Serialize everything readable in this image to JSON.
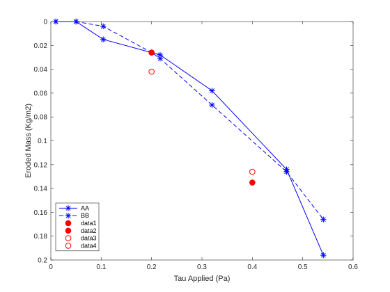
{
  "chart_data": {
    "type": "line",
    "title": "",
    "xlabel": "Tau Applied  (Pa)",
    "ylabel": "Eroded Mass  (Kg/m2)",
    "xlim": [
      0,
      0.6
    ],
    "ylim": [
      0,
      0.2
    ],
    "y_reversed": true,
    "grid": false,
    "legend_position": "bottom-left",
    "x_ticks": [
      "0",
      "0.1",
      "0.2",
      "0.3",
      "0.4",
      "0.5",
      "0.6"
    ],
    "y_ticks": [
      "0",
      "0.02",
      "0.04",
      "0.06",
      "0.08",
      "0.1",
      "0.12",
      "0.14",
      "0.16",
      "0.18",
      "0.2"
    ],
    "series": [
      {
        "name": "AA",
        "style": "solid",
        "marker": "asterisk",
        "color": "#0000ff",
        "x": [
          0.01,
          0.05,
          0.104,
          0.2,
          0.217,
          0.32,
          0.468,
          0.541
        ],
        "y": [
          0,
          0,
          0.015,
          0.026,
          0.028,
          0.058,
          0.124,
          0.196
        ]
      },
      {
        "name": "BB",
        "style": "dashed",
        "marker": "asterisk",
        "color": "#0000ff",
        "x": [
          0.01,
          0.05,
          0.104,
          0.2,
          0.217,
          0.32,
          0.468,
          0.541
        ],
        "y": [
          0,
          0,
          0.004,
          0.026,
          0.031,
          0.07,
          0.126,
          0.166
        ]
      },
      {
        "name": "data1",
        "style": "none",
        "marker": "filled-circle",
        "color": "#ff0000",
        "x": [
          0.2
        ],
        "y": [
          0.026
        ]
      },
      {
        "name": "data2",
        "style": "none",
        "marker": "filled-circle",
        "color": "#ff0000",
        "x": [
          0.4
        ],
        "y": [
          0.135
        ]
      },
      {
        "name": "data3",
        "style": "none",
        "marker": "open-circle",
        "color": "#ff0000",
        "x": [
          0.2
        ],
        "y": [
          0.042
        ]
      },
      {
        "name": "data4",
        "style": "none",
        "marker": "open-circle",
        "color": "#ff0000",
        "x": [
          0.4
        ],
        "y": [
          0.126
        ]
      }
    ]
  }
}
